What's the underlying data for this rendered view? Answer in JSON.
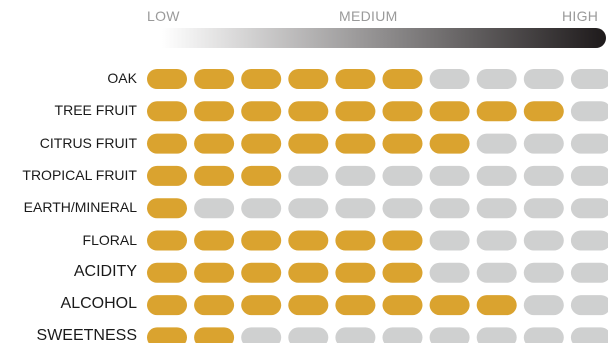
{
  "chart_data": {
    "type": "heatmap",
    "scale": {
      "labels": [
        "LOW",
        "MEDIUM",
        "HIGH"
      ],
      "gradient_from": "#ffffff",
      "gradient_to": "#1e1a1b"
    },
    "max_level": 10,
    "rows": [
      {
        "label": "OAK",
        "value": 6
      },
      {
        "label": "TREE FRUIT",
        "value": 9
      },
      {
        "label": "CITRUS FRUIT",
        "value": 7
      },
      {
        "label": "TROPICAL FRUIT",
        "value": 3
      },
      {
        "label": "EARTH/MINERAL",
        "value": 1
      },
      {
        "label": "FLORAL",
        "value": 6
      },
      {
        "label": "ACIDITY",
        "value": 6
      },
      {
        "label": "ALCOHOL",
        "value": 8
      },
      {
        "label": "SWEETNESS",
        "value": 2
      }
    ],
    "colors": {
      "filled": "#daa32f",
      "empty": "#cfd0d0",
      "label": "#1a1a1a"
    }
  }
}
